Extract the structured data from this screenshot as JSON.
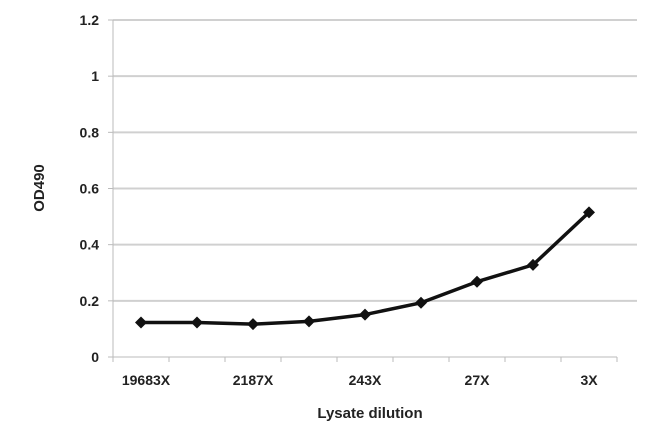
{
  "chart_data": {
    "type": "line",
    "title": "",
    "xlabel": "Lysate dilution",
    "ylabel": "OD490",
    "categories": [
      "19683X",
      "",
      "2187X",
      "",
      "243X",
      "",
      "27X",
      "",
      "3X"
    ],
    "series": [
      {
        "values": [
          0.123,
          0.123,
          0.117,
          0.127,
          0.151,
          0.193,
          0.268,
          0.328,
          0.515
        ]
      }
    ],
    "ylim": [
      0,
      1.2
    ],
    "yticks": [
      "0",
      "0.2",
      "0.4",
      "0.6",
      "0.8",
      "1",
      "1.2"
    ],
    "grid": true,
    "legend": "none",
    "colors": {
      "line": "#111111",
      "grid": "#d0d0d0"
    }
  }
}
